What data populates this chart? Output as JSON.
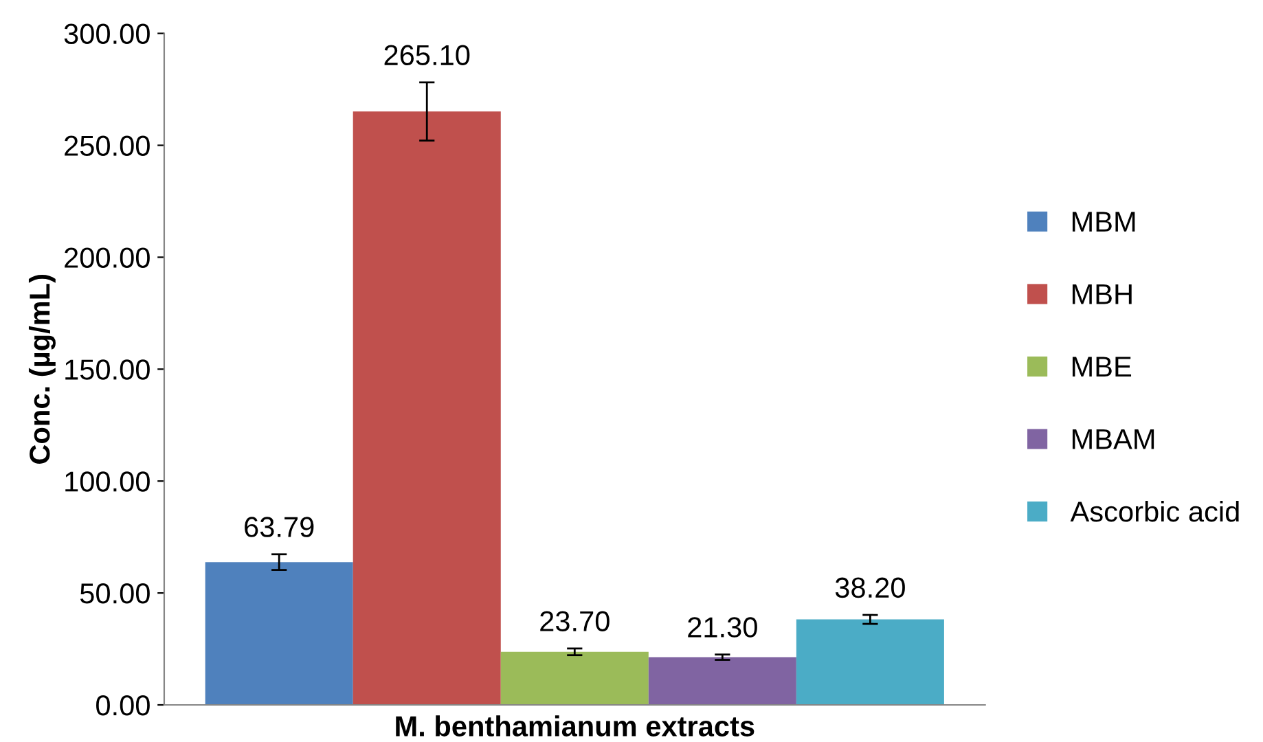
{
  "chart_data": {
    "type": "bar",
    "ylabel": "Conc. (µg/mL)",
    "xlabel": "M. benthamianum extracts",
    "categories": [
      null
    ],
    "series": [
      {
        "name": "MBM",
        "color": "#4f81bd",
        "values": [
          63.79
        ],
        "errors": [
          3.5
        ],
        "value_labels": [
          "63.79"
        ]
      },
      {
        "name": "MBH",
        "color": "#c0504d",
        "values": [
          265.1
        ],
        "errors": [
          13
        ],
        "value_labels": [
          "265.10"
        ]
      },
      {
        "name": "MBE",
        "color": "#9bbb59",
        "values": [
          23.7
        ],
        "errors": [
          1.5
        ],
        "value_labels": [
          "23.70"
        ]
      },
      {
        "name": "MBAM",
        "color": "#8064a2",
        "values": [
          21.3
        ],
        "errors": [
          1.2
        ],
        "value_labels": [
          "21.30"
        ]
      },
      {
        "name": "Ascorbic acid",
        "color": "#4bacc6",
        "values": [
          38.2
        ],
        "errors": [
          2
        ],
        "value_labels": [
          "38.20"
        ]
      }
    ],
    "ylim": [
      0,
      300
    ],
    "yticks": [
      {
        "value": 0,
        "label": "0.00"
      },
      {
        "value": 50,
        "label": "50.00"
      },
      {
        "value": 100,
        "label": "100.00"
      },
      {
        "value": 150,
        "label": "150.00"
      },
      {
        "value": 200,
        "label": "200.00"
      },
      {
        "value": 250,
        "label": "250.00"
      },
      {
        "value": 300,
        "label": "300.00"
      }
    ],
    "grid": false,
    "legend": "right"
  }
}
